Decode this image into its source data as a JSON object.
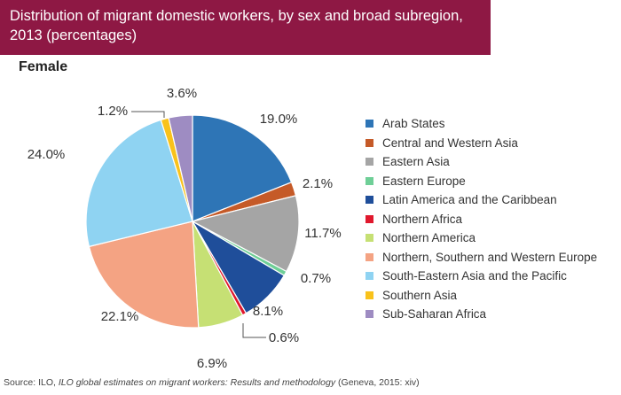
{
  "header": {
    "title": "Distribution of migrant domestic workers, by sex and broad subregion, 2013 (percentages)",
    "subtitle": "Female"
  },
  "chart_data": {
    "type": "pie",
    "title": "Distribution of migrant domestic workers, by sex and broad subregion, 2013 (percentages)",
    "subtitle": "Female",
    "start": "12 o'clock",
    "direction": "clockwise",
    "legend_position": "right",
    "slices": [
      {
        "name": "Arab States",
        "value": 19.0,
        "label": "19.0%",
        "color": "#2e75b6"
      },
      {
        "name": "Central and Western Asia",
        "value": 2.1,
        "label": "2.1%",
        "color": "#c55a28"
      },
      {
        "name": "Eastern Asia",
        "value": 11.7,
        "label": "11.7%",
        "color": "#a5a5a5"
      },
      {
        "name": "Eastern Europe",
        "value": 0.7,
        "label": "0.7%",
        "color": "#6fcf97"
      },
      {
        "name": "Latin America and the Caribbean",
        "value": 8.1,
        "label": "8.1%",
        "color": "#1f4e9a"
      },
      {
        "name": "Northern Africa",
        "value": 0.6,
        "label": "0.6%",
        "color": "#e0182d"
      },
      {
        "name": "Northern America",
        "value": 6.9,
        "label": "6.9%",
        "color": "#c6e074"
      },
      {
        "name": "Northern, Southern and Western Europe",
        "value": 22.1,
        "label": "22.1%",
        "color": "#f4a383"
      },
      {
        "name": "South-Eastern Asia and the Pacific",
        "value": 24.0,
        "label": "24.0%",
        "color": "#8fd3f2"
      },
      {
        "name": "Southern Asia",
        "value": 1.2,
        "label": "1.2%",
        "color": "#f9c21b"
      },
      {
        "name": "Sub-Saharan Africa",
        "value": 3.6,
        "label": "3.6%",
        "color": "#9e8cc2"
      }
    ]
  },
  "source": {
    "prefix": "Source: ILO, ",
    "title": "ILO global estimates on migrant workers: Results and methodology",
    "suffix": " (Geneva, 2015: xiv)"
  }
}
